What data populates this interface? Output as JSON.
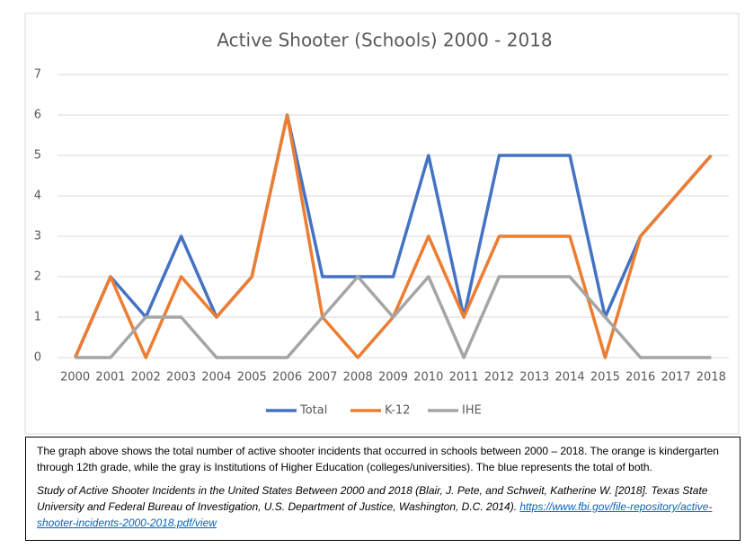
{
  "chart_data": {
    "type": "line",
    "title": "Active Shooter (Schools) 2000 - 2018",
    "categories": [
      "2000",
      "2001",
      "2002",
      "2003",
      "2004",
      "2005",
      "2006",
      "2007",
      "2008",
      "2009",
      "2010",
      "2011",
      "2012",
      "2013",
      "2014",
      "2015",
      "2016",
      "2017",
      "2018"
    ],
    "series": [
      {
        "name": "Total",
        "color": "#4472c4",
        "values": [
          0,
          2,
          1,
          3,
          1,
          2,
          6,
          2,
          2,
          2,
          5,
          1,
          5,
          5,
          5,
          1,
          3,
          4,
          5
        ]
      },
      {
        "name": "K-12",
        "color": "#ed7d31",
        "values": [
          0,
          2,
          0,
          2,
          1,
          2,
          6,
          1,
          0,
          1,
          3,
          1,
          3,
          3,
          3,
          0,
          3,
          4,
          5
        ]
      },
      {
        "name": "IHE",
        "color": "#a5a5a5",
        "values": [
          0,
          0,
          1,
          1,
          0,
          0,
          0,
          1,
          2,
          1,
          2,
          0,
          2,
          2,
          2,
          1,
          0,
          0,
          0
        ]
      }
    ],
    "ylim": [
      0,
      7
    ],
    "yticks": [
      0,
      1,
      2,
      3,
      4,
      5,
      6,
      7
    ],
    "grid": true,
    "legend": "bottom"
  },
  "caption": {
    "text": "The graph above shows the total number of active shooter incidents that occurred in schools between 2000 – 2018. The orange is kindergarten through 12th grade, while the gray is Institutions of Higher Education (colleges/universities). The blue represents the total of both.",
    "citation": "Study of Active Shooter Incidents in the United States Between 2000 and 2018 (Blair, J. Pete, and Schweit, Katherine W. [2018]. Texas State University and Federal Bureau of Investigation, U.S. Department of Justice, Washington, D.C. 2014). ",
    "link": "https://www.fbi.gov/file-repository/active-shooter-incidents-2000-2018.pdf/view"
  }
}
